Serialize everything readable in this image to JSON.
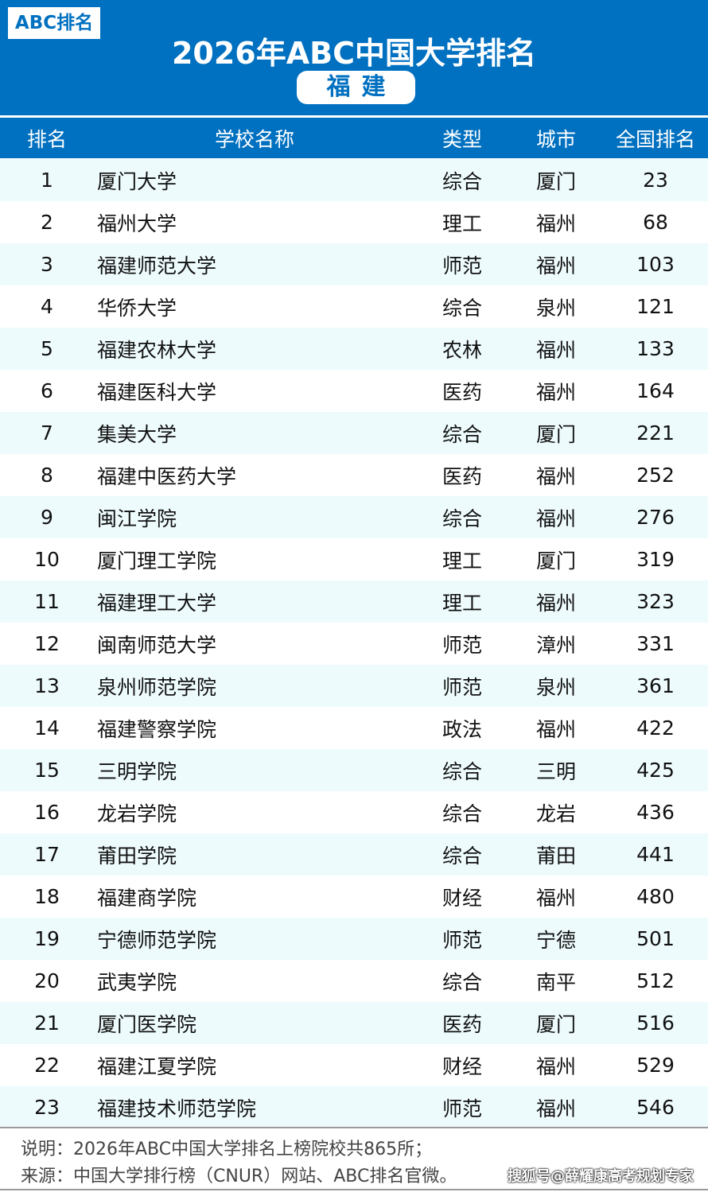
{
  "logo": "ABC排名",
  "title": "2026年ABC中国大学排名",
  "province": "福建",
  "colors": {
    "brand": "#0070c0",
    "row_alt": "#eefbfd"
  },
  "headers": [
    "排名",
    "学校名称",
    "类型",
    "城市",
    "全国排名"
  ],
  "rows": [
    [
      "1",
      "厦门大学",
      "综合",
      "厦门",
      "23"
    ],
    [
      "2",
      "福州大学",
      "理工",
      "福州",
      "68"
    ],
    [
      "3",
      "福建师范大学",
      "师范",
      "福州",
      "103"
    ],
    [
      "4",
      "华侨大学",
      "综合",
      "泉州",
      "121"
    ],
    [
      "5",
      "福建农林大学",
      "农林",
      "福州",
      "133"
    ],
    [
      "6",
      "福建医科大学",
      "医药",
      "福州",
      "164"
    ],
    [
      "7",
      "集美大学",
      "综合",
      "厦门",
      "221"
    ],
    [
      "8",
      "福建中医药大学",
      "医药",
      "福州",
      "252"
    ],
    [
      "9",
      "闽江学院",
      "综合",
      "福州",
      "276"
    ],
    [
      "10",
      "厦门理工学院",
      "理工",
      "厦门",
      "319"
    ],
    [
      "11",
      "福建理工大学",
      "理工",
      "福州",
      "323"
    ],
    [
      "12",
      "闽南师范大学",
      "师范",
      "漳州",
      "331"
    ],
    [
      "13",
      "泉州师范学院",
      "师范",
      "泉州",
      "361"
    ],
    [
      "14",
      "福建警察学院",
      "政法",
      "福州",
      "422"
    ],
    [
      "15",
      "三明学院",
      "综合",
      "三明",
      "425"
    ],
    [
      "16",
      "龙岩学院",
      "综合",
      "龙岩",
      "436"
    ],
    [
      "17",
      "莆田学院",
      "综合",
      "莆田",
      "441"
    ],
    [
      "18",
      "福建商学院",
      "财经",
      "福州",
      "480"
    ],
    [
      "19",
      "宁德师范学院",
      "师范",
      "宁德",
      "501"
    ],
    [
      "20",
      "武夷学院",
      "综合",
      "南平",
      "512"
    ],
    [
      "21",
      "厦门医学院",
      "医药",
      "厦门",
      "516"
    ],
    [
      "22",
      "福建江夏学院",
      "财经",
      "福州",
      "529"
    ],
    [
      "23",
      "福建技术师范学院",
      "师范",
      "福州",
      "546"
    ]
  ],
  "footer": {
    "note": "说明：2026年ABC中国大学排名上榜院校共865所；",
    "source": "来源：中国大学排行榜（CNUR）网站、ABC排名官微。"
  },
  "watermark": "搜狐号@薛耀康高考规划专家"
}
